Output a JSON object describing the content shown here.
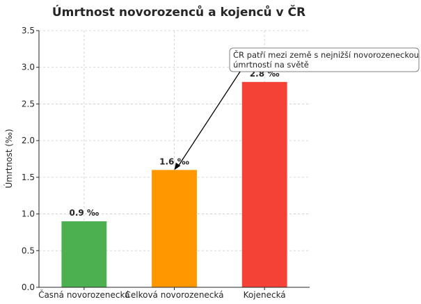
{
  "chart_data": {
    "type": "bar",
    "title": "Úmrtnost novorozenců a kojenců v ČR",
    "xlabel": "",
    "ylabel": "Úmrtnost (‰)",
    "categories": [
      "Časná novorozenecká",
      "Celková novorozenecká",
      "Kojenecká"
    ],
    "values": [
      0.9,
      1.6,
      2.8
    ],
    "value_labels": [
      "0.9 ‰",
      "1.6 ‰",
      "2.8 ‰"
    ],
    "colors": [
      "#4caf50",
      "#ff9800",
      "#f44336"
    ],
    "ylim": [
      0,
      3.5
    ],
    "yticks": [
      0.0,
      0.5,
      1.0,
      1.5,
      2.0,
      2.5,
      3.0,
      3.5
    ],
    "ytick_labels": [
      "0.0",
      "0.5",
      "1.0",
      "1.5",
      "2.0",
      "2.5",
      "3.0",
      "3.5"
    ],
    "grid": true,
    "annotation": {
      "lines": [
        "ČR patří mezi země s nejnižší novorozeneckou",
        "úmrtností na světě"
      ],
      "target_category": 1,
      "target_value": 1.6
    }
  }
}
